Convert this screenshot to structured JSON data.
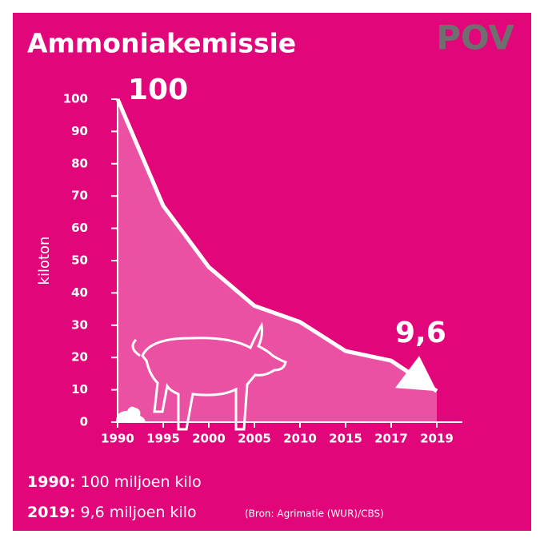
{
  "chart_data": {
    "type": "line",
    "title": "Ammoniakemissie",
    "logo": "POV",
    "y_label": "kiloton",
    "categories": [
      "1990",
      "1995",
      "2000",
      "2005",
      "2010",
      "2015",
      "2017",
      "2019"
    ],
    "values": [
      100,
      67,
      48,
      36,
      31,
      22,
      19,
      9.6
    ],
    "color": "#ffffff",
    "ylim": [
      0,
      100
    ],
    "yticks": [
      0,
      10,
      20,
      30,
      40,
      50,
      60,
      70,
      80,
      90,
      100
    ],
    "annotations": [
      "100",
      "9,6"
    ],
    "notes": [
      {
        "label": "1990:",
        "text": "100 miljoen kilo"
      },
      {
        "label": "2019:",
        "text": "9,6 miljoen kilo"
      }
    ],
    "source": "(Bron: Agrimatie (WUR)/CBS)"
  }
}
